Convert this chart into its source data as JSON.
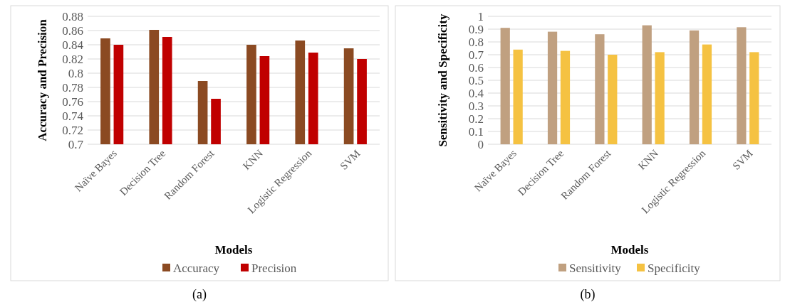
{
  "chart_data": [
    {
      "type": "bar",
      "xlabel": "Models",
      "ylabel": "Accuracy and Precision",
      "categories": [
        "Naïve Bayes",
        "Decision Tree",
        "Random Forest",
        "KNN",
        "Logistic Regression",
        "SVM"
      ],
      "series": [
        {
          "name": "Accuracy",
          "color": "#8b4a22",
          "values": [
            0.849,
            0.861,
            0.789,
            0.84,
            0.846,
            0.835
          ]
        },
        {
          "name": "Precision",
          "color": "#c00000",
          "values": [
            0.84,
            0.851,
            0.764,
            0.824,
            0.829,
            0.82
          ]
        }
      ],
      "ylim": [
        0.7,
        0.88
      ],
      "yticks": [
        0.7,
        0.72,
        0.74,
        0.76,
        0.78,
        0.8,
        0.82,
        0.84,
        0.86,
        0.88
      ],
      "grid": "y",
      "legend": "bottom",
      "annotations": [
        "(a)"
      ]
    },
    {
      "type": "bar",
      "xlabel": "Models",
      "ylabel": "Sensitivity and Specificity",
      "categories": [
        "Naïve Bayes",
        "Decision Tree",
        "Random Forest",
        "KNN",
        "Logistic Regression",
        "SVM"
      ],
      "series": [
        {
          "name": "Sensitivity",
          "color": "#c0a080",
          "values": [
            0.91,
            0.88,
            0.86,
            0.93,
            0.89,
            0.915
          ]
        },
        {
          "name": "Specificity",
          "color": "#f5c242",
          "values": [
            0.74,
            0.73,
            0.7,
            0.72,
            0.78,
            0.72
          ]
        }
      ],
      "ylim": [
        0,
        1
      ],
      "yticks": [
        0,
        0.1,
        0.2,
        0.3,
        0.4,
        0.5,
        0.6,
        0.7,
        0.8,
        0.9,
        1
      ],
      "grid": "y",
      "legend": "bottom",
      "annotations": [
        "(b)"
      ]
    }
  ]
}
